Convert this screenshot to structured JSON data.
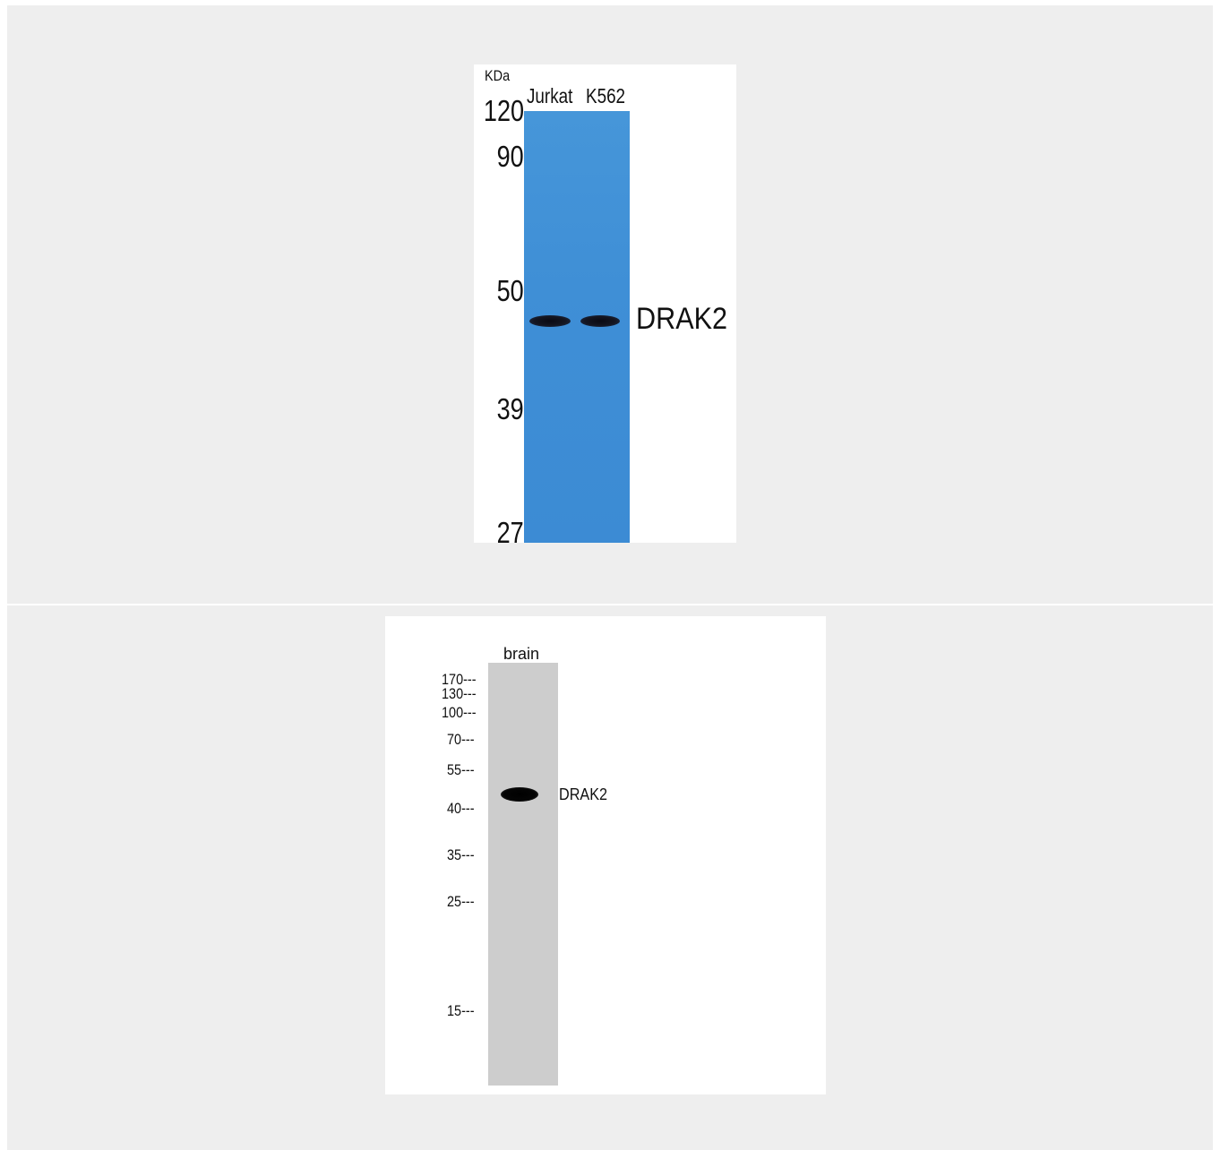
{
  "panel_1": {
    "unit": "KDa",
    "lanes": [
      "Jurkat",
      "K562"
    ],
    "markers": [
      "120",
      "90",
      "50",
      "39",
      "27"
    ],
    "target": "DRAK2",
    "membrane_color": "#3f8fd6"
  },
  "panel_2": {
    "lanes": [
      "brain"
    ],
    "markers": [
      "170---",
      "130---",
      "100---",
      "70---",
      "55---",
      "40---",
      "35---",
      "25---",
      "15---"
    ],
    "target": "DRAK2",
    "membrane_color": "#cdcdcd"
  }
}
